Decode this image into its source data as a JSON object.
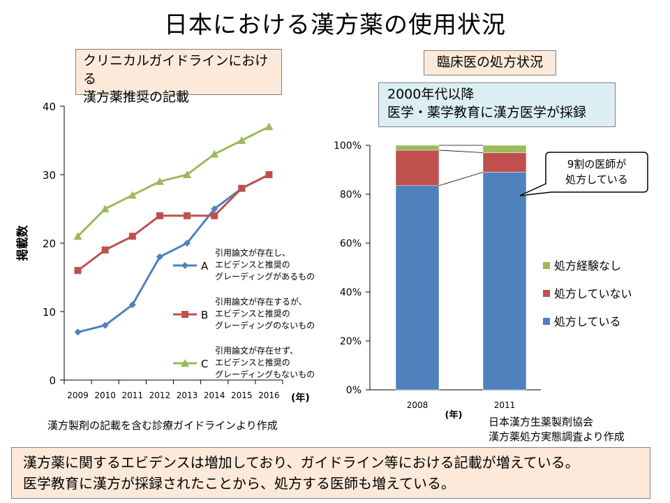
{
  "title": "日本における漢方薬の使用状況",
  "left_panel": {
    "box_line1": "クリニカルガイドラインにおける",
    "box_line2": "漢方薬推奨の記載",
    "source": "漢方製剤の記載を含む診療ガイドラインより作成"
  },
  "right_panel": {
    "box_label": "臨床医の処方状況",
    "era_line1": "2000年代以降",
    "era_line2": "医学・薬学教育に漢方医学が採録",
    "source_line1": "日本漢方生薬製剤協会",
    "source_line2": "漢方薬処方実態調査より作成"
  },
  "summary": {
    "line1": "漢方薬に関するエビデンスは増加しており、ガイドライン等における記載が増えている。",
    "line2": "医学教育に漢方が採録されたことから、処方する医師も増えている。"
  },
  "chart_data": [
    {
      "type": "line",
      "x": [
        "2009",
        "2010",
        "2011",
        "2012",
        "2013",
        "2014",
        "2015",
        "2016"
      ],
      "xlabel": "(年)",
      "ylabel": "掲載数",
      "ylim": [
        0,
        40
      ],
      "yticks": [
        "0",
        "10",
        "20",
        "30",
        "40"
      ],
      "grid": false,
      "series": [
        {
          "name": "A",
          "color": "#4f81bd",
          "marker": "diamond",
          "values": [
            7,
            8,
            11,
            18,
            20,
            25,
            28,
            30
          ],
          "desc": [
            "引用論文が存在し、",
            "エビデンスと推奨の",
            "グレーディングがあるもの"
          ]
        },
        {
          "name": "B",
          "color": "#c0504d",
          "marker": "square",
          "values": [
            16,
            19,
            21,
            24,
            24,
            24,
            28,
            30
          ],
          "desc": [
            "引用論文が存在するが、",
            "エビデンスと推奨の",
            "グレーディングのないもの"
          ]
        },
        {
          "name": "C",
          "color": "#9bbb59",
          "marker": "triangle",
          "values": [
            21,
            25,
            27,
            29,
            30,
            33,
            35,
            37
          ],
          "desc": [
            "引用論文が存在せず、",
            "エビデンスと推奨の",
            "グレーディングもないもの"
          ]
        }
      ]
    },
    {
      "type": "bar",
      "stacked": true,
      "categories": [
        "2008",
        "2011"
      ],
      "xlabel": "(年)",
      "ylim": [
        0,
        100
      ],
      "yticks": [
        "0%",
        "20%",
        "40%",
        "60%",
        "80%",
        "100%"
      ],
      "legend_position": "right",
      "series": [
        {
          "name": "処方している",
          "color": "#4f81bd",
          "values": [
            83.5,
            89
          ]
        },
        {
          "name": "処方していない",
          "color": "#c0504d",
          "values": [
            14.5,
            8
          ]
        },
        {
          "name": "処方経験なし",
          "color": "#9bbb59",
          "values": [
            2,
            3
          ]
        }
      ],
      "callout_line1": "9割の医師が",
      "callout_line2": "処方している"
    }
  ]
}
